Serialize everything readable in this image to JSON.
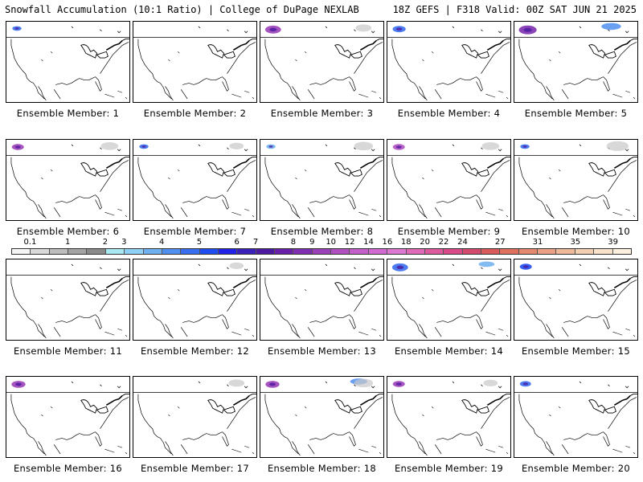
{
  "header": {
    "title_left": "Snowfall Accumulation (10:1 Ratio) | College of DuPage NEXLAB",
    "title_right": "18Z GEFS | F318 Valid: 00Z SAT JUN 21 2025"
  },
  "colorbar": {
    "labels": [
      "0.1",
      "1",
      "2",
      "3",
      "4",
      "5",
      "6",
      "7",
      "8",
      "9",
      "10",
      "12",
      "14",
      "16",
      "18",
      "20",
      "22",
      "24",
      "27",
      "31",
      "35",
      "39"
    ],
    "colors": [
      "#f4f4f4",
      "#d9d9d9",
      "#bdbdbd",
      "#a3a3a3",
      "#8a8a8a",
      "#a8e8f0",
      "#8fd0f5",
      "#6fb0f0",
      "#4f8ff0",
      "#3a6ef0",
      "#1f4cf0",
      "#2020e6",
      "#3a1fb8",
      "#4b1aa0",
      "#6a1fa8",
      "#7e2fb0",
      "#9a40b8",
      "#b050c0",
      "#c25fc8",
      "#d06ad0",
      "#dd78d2",
      "#e06ab8",
      "#de5a9e",
      "#d84a88",
      "#d24a6e",
      "#d85a5a",
      "#de7060",
      "#e48870",
      "#eaa084",
      "#eeb89a",
      "#f2ceb2",
      "#f8e2cc",
      "#fcefe0"
    ]
  },
  "members": [
    {
      "label": "Ensemble Member: 1",
      "snow": [
        {
          "type": "blob",
          "color": "#3a6ef0",
          "amt": 0.3
        }
      ]
    },
    {
      "label": "Ensemble Member: 2",
      "snow": []
    },
    {
      "label": "Ensemble Member: 3",
      "snow": [
        {
          "type": "blob",
          "color": "#9a40b8",
          "amt": 1.0
        },
        {
          "type": "gray",
          "amt": 0.4
        }
      ]
    },
    {
      "label": "Ensemble Member: 4",
      "snow": [
        {
          "type": "blob",
          "color": "#3a6ef0",
          "amt": 0.7
        }
      ]
    },
    {
      "label": "Ensemble Member: 5",
      "snow": [
        {
          "type": "blob",
          "color": "#7e2fb0",
          "amt": 1.2
        },
        {
          "type": "blob2",
          "color": "#4f8ff0",
          "amt": 0.8
        }
      ]
    },
    {
      "label": "Ensemble Member: 6",
      "snow": [
        {
          "type": "blob",
          "color": "#9a40b8",
          "amt": 0.6
        },
        {
          "type": "gray",
          "amt": 0.5
        }
      ]
    },
    {
      "label": "Ensemble Member: 7",
      "snow": [
        {
          "type": "blob",
          "color": "#3a6ef0",
          "amt": 0.3
        },
        {
          "type": "gray",
          "amt": 0.3
        }
      ]
    },
    {
      "label": "Ensemble Member: 8",
      "snow": [
        {
          "type": "blob",
          "color": "#6fb0f0",
          "amt": 0.3
        },
        {
          "type": "gray",
          "amt": 0.6
        }
      ]
    },
    {
      "label": "Ensemble Member: 9",
      "snow": [
        {
          "type": "blob",
          "color": "#b050c0",
          "amt": 0.6
        },
        {
          "type": "gray",
          "amt": 0.5
        }
      ]
    },
    {
      "label": "Ensemble Member: 10",
      "snow": [
        {
          "type": "blob",
          "color": "#3a6ef0",
          "amt": 0.3
        },
        {
          "type": "gray",
          "amt": 0.8
        }
      ]
    },
    {
      "label": "Ensemble Member: 11",
      "snow": []
    },
    {
      "label": "Ensemble Member: 12",
      "snow": [
        {
          "type": "gray",
          "amt": 0.3
        }
      ]
    },
    {
      "label": "Ensemble Member: 13",
      "snow": []
    },
    {
      "label": "Ensemble Member: 14",
      "snow": [
        {
          "type": "blob",
          "color": "#3a6ef0",
          "amt": 1.0
        },
        {
          "type": "blob2",
          "color": "#6fb0f0",
          "amt": 0.5
        }
      ]
    },
    {
      "label": "Ensemble Member: 15",
      "snow": [
        {
          "type": "blob",
          "color": "#1f4cf0",
          "amt": 0.6
        }
      ]
    },
    {
      "label": "Ensemble Member: 16",
      "snow": [
        {
          "type": "blob",
          "color": "#9a40b8",
          "amt": 0.8
        }
      ]
    },
    {
      "label": "Ensemble Member: 17",
      "snow": [
        {
          "type": "gray",
          "amt": 0.4
        }
      ]
    },
    {
      "label": "Ensemble Member: 18",
      "snow": [
        {
          "type": "blob",
          "color": "#9a40b8",
          "amt": 0.8
        },
        {
          "type": "blob2",
          "color": "#4f8ff0",
          "amt": 0.6
        },
        {
          "type": "gray",
          "amt": 0.6
        }
      ]
    },
    {
      "label": "Ensemble Member: 19",
      "snow": [
        {
          "type": "blob",
          "color": "#9a40b8",
          "amt": 0.6
        },
        {
          "type": "gray",
          "amt": 0.3
        }
      ]
    },
    {
      "label": "Ensemble Member: 20",
      "snow": [
        {
          "type": "blob",
          "color": "#3a6ef0",
          "amt": 0.5
        }
      ]
    }
  ]
}
